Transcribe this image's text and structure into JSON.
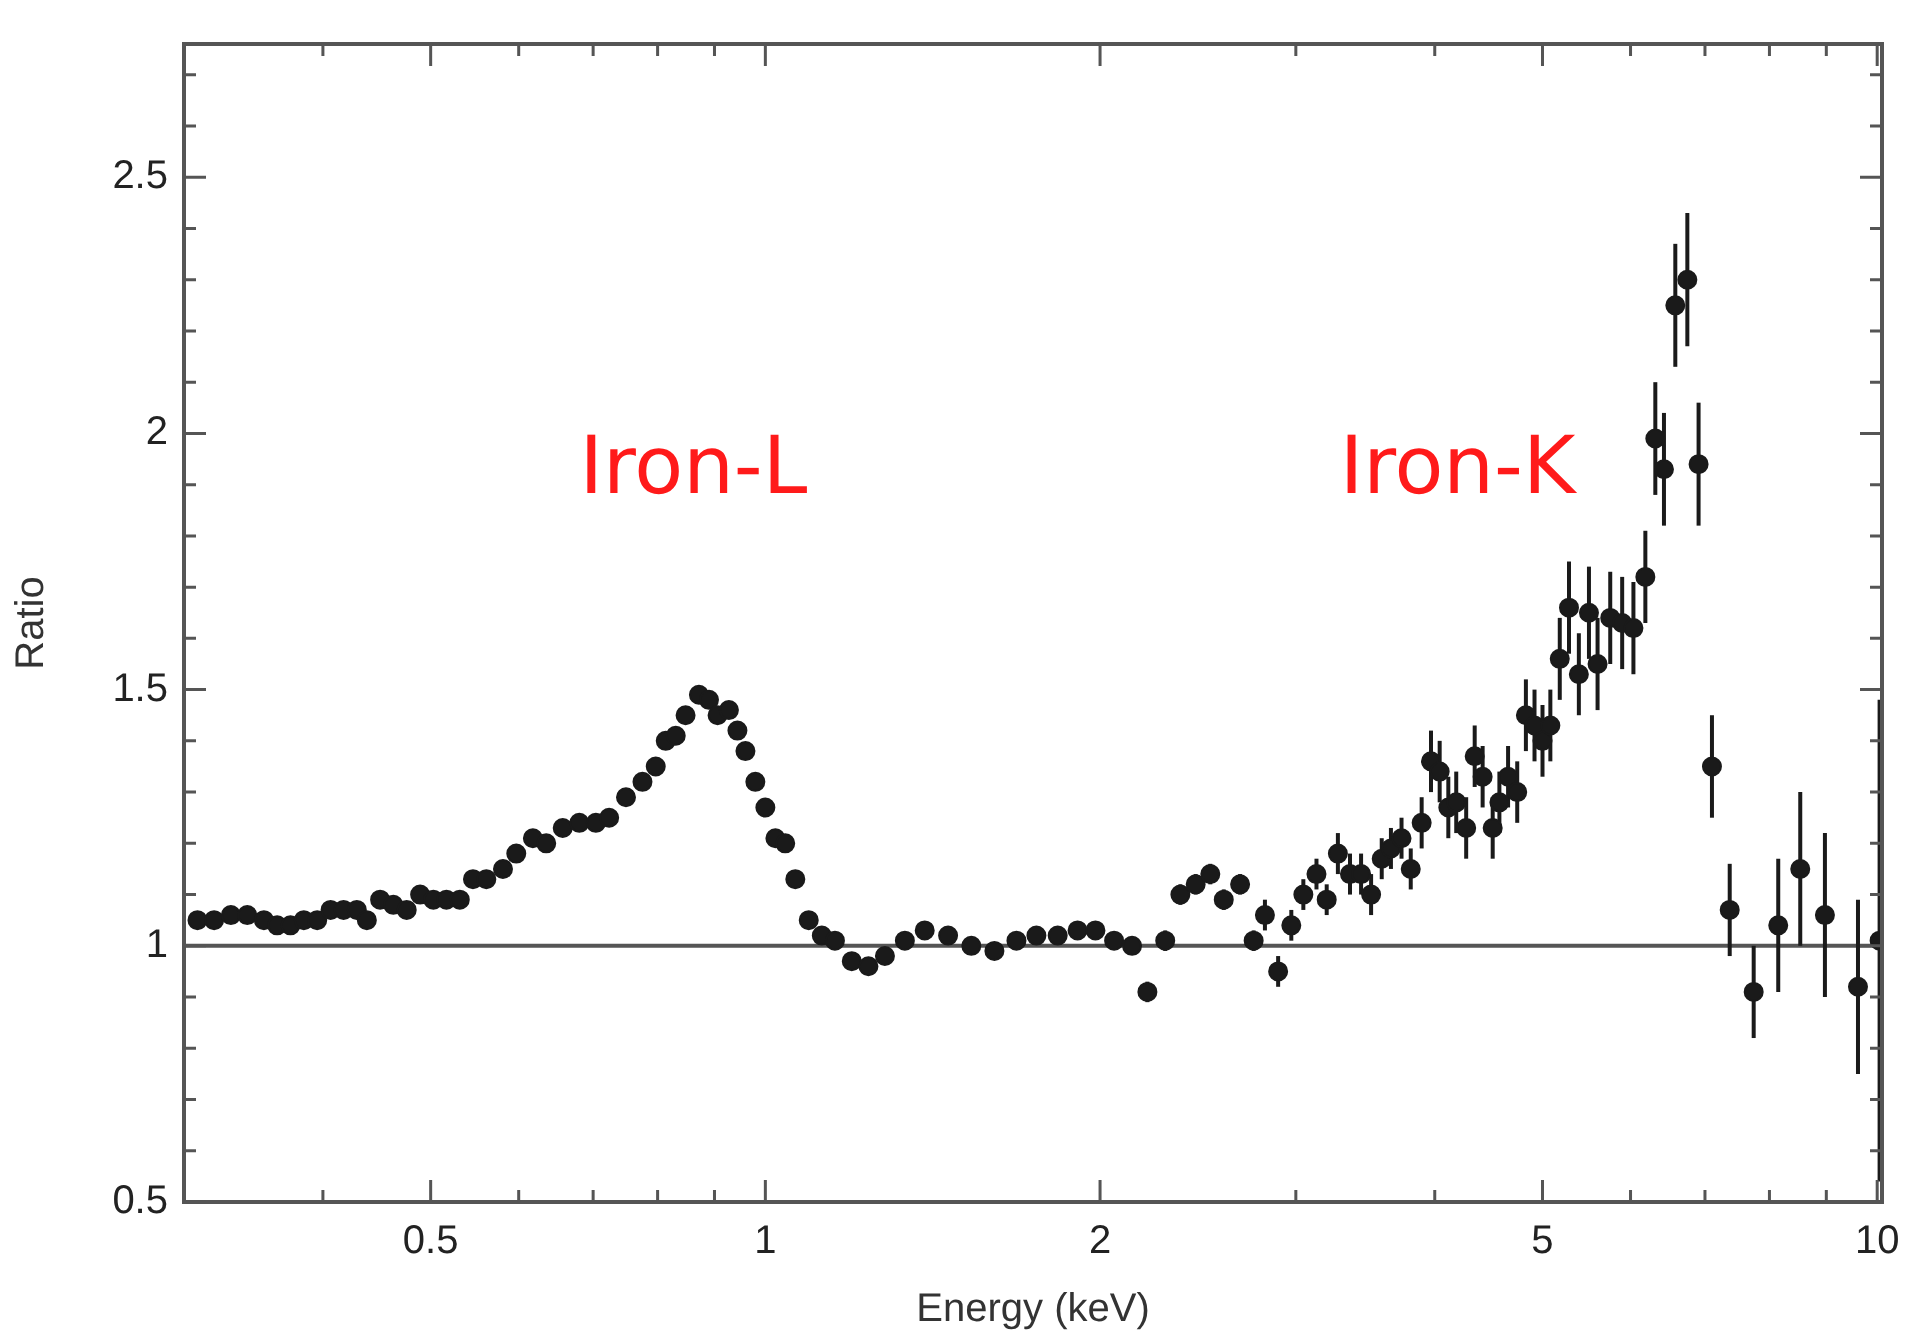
{
  "chart_data": {
    "type": "scatter",
    "xlabel": "Energy (keV)",
    "ylabel": "Ratio",
    "log": "x",
    "grid": false,
    "legend": false,
    "marker": "circle",
    "color": "#1a1a1a",
    "xlim": [
      0.305,
      10.1
    ],
    "xticks": [
      {
        "value": 0.4,
        "label": null
      },
      0.5,
      {
        "value": 0.6,
        "label": null
      },
      {
        "value": 0.7,
        "label": null
      },
      {
        "value": 0.8,
        "label": null
      },
      {
        "value": 0.9,
        "label": null
      },
      1,
      2,
      {
        "value": 3,
        "label": null
      },
      {
        "value": 4,
        "label": null
      },
      5,
      {
        "value": 6,
        "label": null
      },
      {
        "value": 7,
        "label": null
      },
      {
        "value": 8,
        "label": null
      },
      {
        "value": 9,
        "label": null
      },
      10
    ],
    "ylim": [
      0.5,
      2.76
    ],
    "yticks": [
      0.5,
      {
        "value": 0.6,
        "label": null
      },
      {
        "value": 0.7,
        "label": null
      },
      {
        "value": 0.8,
        "label": null
      },
      {
        "value": 0.9,
        "label": null
      },
      1,
      {
        "value": 1.1,
        "label": null
      },
      {
        "value": 1.2,
        "label": null
      },
      {
        "value": 1.3,
        "label": null
      },
      {
        "value": 1.4,
        "label": null
      },
      1.5,
      {
        "value": 1.6,
        "label": null
      },
      {
        "value": 1.7,
        "label": null
      },
      {
        "value": 1.8,
        "label": null
      },
      {
        "value": 1.9,
        "label": null
      },
      2,
      {
        "value": 2.1,
        "label": null
      },
      {
        "value": 2.2,
        "label": null
      },
      {
        "value": 2.3,
        "label": null
      },
      {
        "value": 2.4,
        "label": null
      },
      2.5,
      {
        "value": 2.6,
        "label": null
      },
      {
        "value": 2.7,
        "label": null
      }
    ],
    "ref_lines": [
      {
        "axis": "y",
        "value": 1,
        "color": "#555555"
      }
    ],
    "annotations": [
      "Iron-L",
      "Iron-K"
    ],
    "x": [
      0.3085,
      0.3193,
      0.3306,
      0.342,
      0.354,
      0.3638,
      0.374,
      0.3845,
      0.3953,
      0.4064,
      0.4175,
      0.4291,
      0.4381,
      0.4503,
      0.4628,
      0.4758,
      0.4892,
      0.5028,
      0.5166,
      0.5311,
      0.5458,
      0.5611,
      0.5808,
      0.597,
      0.6179,
      0.6352,
      0.6573,
      0.6803,
      0.704,
      0.7236,
      0.7493,
      0.7753,
      0.7969,
      0.8136,
      0.8306,
      0.8477,
      0.8715,
      0.8898,
      0.9058,
      0.9273,
      0.9438,
      0.9596,
      0.9795,
      1.0,
      1.021,
      1.042,
      1.064,
      1.094,
      1.124,
      1.155,
      1.196,
      1.238,
      1.281,
      1.335,
      1.391,
      1.46,
      1.532,
      1.607,
      1.682,
      1.753,
      1.832,
      1.909,
      1.981,
      2.059,
      2.137,
      2.206,
      2.289,
      2.362,
      2.438,
      2.513,
      2.584,
      2.673,
      2.749,
      2.814,
      2.892,
      2.972,
      3.047,
      3.131,
      3.198,
      3.273,
      3.356,
      3.434,
      3.506,
      3.584,
      3.653,
      3.734,
      3.806,
      3.893,
      3.969,
      4.041,
      4.114,
      4.182,
      4.269,
      4.345,
      4.417,
      4.51,
      4.573,
      4.656,
      4.745,
      4.831,
      4.918,
      5.0,
      5.082,
      5.182,
      5.282,
      5.391,
      5.505,
      5.604,
      5.753,
      5.897,
      6.036,
      6.187,
      6.316,
      6.43,
      6.583,
      6.749,
      6.908,
      7.102,
      7.368,
      7.743,
      8.147,
      8.527,
      8.974,
      9.61,
      10.05
    ],
    "values": [
      1.05,
      1.05,
      1.06,
      1.06,
      1.05,
      1.04,
      1.04,
      1.05,
      1.05,
      1.07,
      1.07,
      1.07,
      1.05,
      1.09,
      1.08,
      1.07,
      1.1,
      1.09,
      1.09,
      1.09,
      1.13,
      1.13,
      1.15,
      1.18,
      1.21,
      1.2,
      1.23,
      1.24,
      1.24,
      1.25,
      1.29,
      1.32,
      1.35,
      1.4,
      1.41,
      1.45,
      1.49,
      1.48,
      1.45,
      1.46,
      1.42,
      1.38,
      1.32,
      1.27,
      1.21,
      1.2,
      1.13,
      1.05,
      1.02,
      1.01,
      0.97,
      0.96,
      0.98,
      1.01,
      1.03,
      1.02,
      1.0,
      0.99,
      1.01,
      1.02,
      1.02,
      1.03,
      1.03,
      1.01,
      1.0,
      0.91,
      1.01,
      1.1,
      1.12,
      1.14,
      1.09,
      1.12,
      1.01,
      1.06,
      0.95,
      1.04,
      1.1,
      1.14,
      1.09,
      1.18,
      1.14,
      1.14,
      1.1,
      1.17,
      1.19,
      1.21,
      1.15,
      1.24,
      1.36,
      1.34,
      1.27,
      1.28,
      1.23,
      1.37,
      1.33,
      1.23,
      1.28,
      1.33,
      1.3,
      1.45,
      1.43,
      1.4,
      1.43,
      1.56,
      1.66,
      1.53,
      1.65,
      1.55,
      1.64,
      1.63,
      1.62,
      1.72,
      1.99,
      1.93,
      2.25,
      2.3,
      1.94,
      1.35,
      1.07,
      0.91,
      1.04,
      1.15,
      1.06,
      0.92,
      1.01
    ],
    "errors": [
      null,
      null,
      null,
      null,
      null,
      null,
      null,
      null,
      null,
      null,
      null,
      null,
      null,
      null,
      null,
      null,
      null,
      null,
      null,
      null,
      null,
      null,
      null,
      null,
      null,
      null,
      null,
      null,
      null,
      null,
      null,
      null,
      null,
      null,
      null,
      null,
      null,
      null,
      null,
      null,
      null,
      null,
      null,
      null,
      null,
      null,
      null,
      null,
      null,
      null,
      null,
      null,
      null,
      null,
      null,
      null,
      null,
      null,
      null,
      null,
      null,
      null,
      null,
      null,
      null,
      0.02,
      0.02,
      0.02,
      0.02,
      0.02,
      0.02,
      0.02,
      0.02,
      0.03,
      0.03,
      0.03,
      0.03,
      0.03,
      0.03,
      0.04,
      0.04,
      0.04,
      0.04,
      0.04,
      0.04,
      0.04,
      0.04,
      0.05,
      0.06,
      0.06,
      0.06,
      0.06,
      0.06,
      0.06,
      0.06,
      0.06,
      0.06,
      0.06,
      0.06,
      0.07,
      0.07,
      0.07,
      0.07,
      0.08,
      0.09,
      0.08,
      0.09,
      0.09,
      0.09,
      0.09,
      0.09,
      0.09,
      0.11,
      0.11,
      0.12,
      0.13,
      0.12,
      0.1,
      0.09,
      0.09,
      0.13,
      0.15,
      0.16,
      0.17,
      0.47
    ]
  }
}
